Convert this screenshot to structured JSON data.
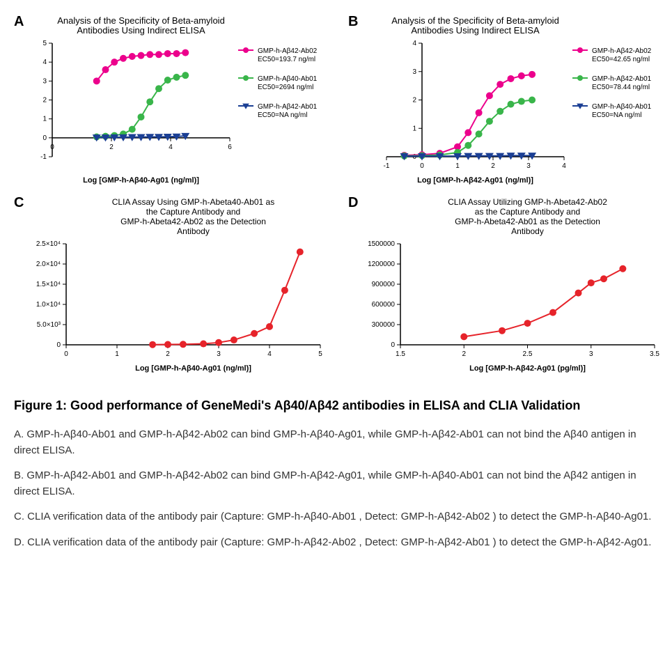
{
  "colors": {
    "pink": "#ec008c",
    "green": "#39b54a",
    "blue": "#1b3f94",
    "red": "#e6232a",
    "axis": "#000000",
    "bg": "#ffffff"
  },
  "panelA": {
    "label": "A",
    "title": "Analysis of the Specificity of Beta-amyloid\nAntibodies Using Indirect ELISA",
    "xlabel": "Log [GMP-h-Aβ40-Ag01 (ng/ml)]",
    "xlim": [
      0,
      6
    ],
    "xticks": [
      0,
      2,
      4,
      6
    ],
    "ylim": [
      -1,
      5
    ],
    "yticks": [
      -1,
      0,
      1,
      2,
      3,
      4,
      5
    ],
    "title_fontsize": 13,
    "axis_fontsize": 11,
    "tick_fontsize": 10,
    "legend": [
      {
        "marker": "circle",
        "color": "#ec008c",
        "lines": [
          "GMP-h-Aβ42-Ab02",
          "EC50=193.7 ng/ml"
        ]
      },
      {
        "marker": "circle",
        "color": "#39b54a",
        "lines": [
          "GMP-h-Aβ40-Ab01",
          "EC50=2694 ng/ml"
        ]
      },
      {
        "marker": "triangle-down",
        "color": "#1b3f94",
        "lines": [
          "GMP-h-Aβ42-Ab01",
          "EC50=NA ng/ml"
        ]
      }
    ],
    "series": [
      {
        "color": "#ec008c",
        "marker": "circle",
        "line_width": 2,
        "marker_size": 5,
        "x": [
          1.5,
          1.8,
          2.1,
          2.4,
          2.7,
          3.0,
          3.3,
          3.6,
          3.9,
          4.2,
          4.5
        ],
        "y": [
          3.0,
          3.6,
          4.0,
          4.2,
          4.3,
          4.35,
          4.4,
          4.4,
          4.45,
          4.45,
          4.5
        ]
      },
      {
        "color": "#39b54a",
        "marker": "circle",
        "line_width": 2,
        "marker_size": 5,
        "x": [
          1.5,
          1.8,
          2.1,
          2.4,
          2.7,
          3.0,
          3.3,
          3.6,
          3.9,
          4.2,
          4.5
        ],
        "y": [
          0.05,
          0.08,
          0.12,
          0.2,
          0.45,
          1.1,
          1.9,
          2.6,
          3.05,
          3.2,
          3.3
        ]
      },
      {
        "color": "#1b3f94",
        "marker": "triangle-down",
        "line_width": 2,
        "marker_size": 5,
        "x": [
          1.5,
          1.8,
          2.1,
          2.4,
          2.7,
          3.0,
          3.3,
          3.6,
          3.9,
          4.2,
          4.5
        ],
        "y": [
          0.02,
          0.02,
          0.03,
          0.03,
          0.04,
          0.04,
          0.05,
          0.05,
          0.06,
          0.07,
          0.1
        ]
      }
    ]
  },
  "panelB": {
    "label": "B",
    "title": "Analysis of the Specificity of Beta-amyloid\nAntibodies Using Indirect ELISA",
    "xlabel": "Log [GMP-h-Aβ42-Ag01 (ng/ml)]",
    "xlim": [
      -1,
      4
    ],
    "xticks": [
      -1,
      0,
      1,
      2,
      3,
      4
    ],
    "ylim": [
      0,
      4
    ],
    "yticks": [
      0,
      1,
      2,
      3,
      4
    ],
    "title_fontsize": 13,
    "axis_fontsize": 11,
    "tick_fontsize": 10,
    "legend": [
      {
        "marker": "circle",
        "color": "#ec008c",
        "lines": [
          "GMP-h-Aβ42-Ab02",
          "EC50=42.65 ng/ml"
        ]
      },
      {
        "marker": "circle",
        "color": "#39b54a",
        "lines": [
          "GMP-h-Aβ42-Ab01",
          "EC50=78.44 ng/ml"
        ]
      },
      {
        "marker": "triangle-down",
        "color": "#1b3f94",
        "lines": [
          "GMP-h-Aβ40-Ab01",
          "EC50=NA ng/ml"
        ]
      }
    ],
    "series": [
      {
        "color": "#ec008c",
        "marker": "circle",
        "line_width": 2,
        "marker_size": 5,
        "x": [
          -0.5,
          0.0,
          0.5,
          1.0,
          1.3,
          1.6,
          1.9,
          2.2,
          2.5,
          2.8,
          3.1
        ],
        "y": [
          0.05,
          0.07,
          0.12,
          0.35,
          0.85,
          1.55,
          2.15,
          2.55,
          2.75,
          2.85,
          2.9
        ]
      },
      {
        "color": "#39b54a",
        "marker": "circle",
        "line_width": 2,
        "marker_size": 5,
        "x": [
          -0.5,
          0.0,
          0.5,
          1.0,
          1.3,
          1.6,
          1.9,
          2.2,
          2.5,
          2.8,
          3.1
        ],
        "y": [
          0.03,
          0.04,
          0.06,
          0.15,
          0.4,
          0.8,
          1.25,
          1.6,
          1.85,
          1.95,
          2.0
        ]
      },
      {
        "color": "#1b3f94",
        "marker": "triangle-down",
        "line_width": 2,
        "marker_size": 5,
        "x": [
          -0.5,
          0.0,
          0.5,
          1.0,
          1.3,
          1.6,
          1.9,
          2.2,
          2.5,
          2.8,
          3.1
        ],
        "y": [
          0.02,
          0.02,
          0.02,
          0.02,
          0.03,
          0.03,
          0.03,
          0.03,
          0.04,
          0.04,
          0.04
        ]
      }
    ]
  },
  "panelC": {
    "label": "C",
    "title": "CLIA Assay Using GMP-h-Abeta40-Ab01 as\nthe Capture Antibody and\nGMP-h-Abeta42-Ab02 as the Detection\nAntibody",
    "xlabel": "Log [GMP-h-Aβ40-Ag01 (ng/ml)]",
    "xlim": [
      0,
      5
    ],
    "xticks": [
      0,
      1,
      2,
      3,
      4,
      5
    ],
    "ylim": [
      0,
      25000
    ],
    "yticks": [
      0,
      5000,
      10000,
      15000,
      20000,
      25000
    ],
    "yticklabels": [
      "0",
      "5.0×10³",
      "1.0×10⁴",
      "1.5×10⁴",
      "2.0×10⁴",
      "2.5×10⁴"
    ],
    "title_fontsize": 12,
    "axis_fontsize": 11,
    "tick_fontsize": 10,
    "series": [
      {
        "color": "#e6232a",
        "marker": "circle",
        "line_width": 2,
        "marker_size": 5,
        "x": [
          1.7,
          2.0,
          2.3,
          2.7,
          3.0,
          3.3,
          3.7,
          4.0,
          4.3,
          4.6
        ],
        "y": [
          50,
          80,
          120,
          250,
          550,
          1200,
          2800,
          4500,
          13500,
          23000
        ]
      }
    ]
  },
  "panelD": {
    "label": "D",
    "title": "CLIA Assay Utilizing GMP-h-Abeta42-Ab02\nas the Capture Antibody and\nGMP-h-Abeta42-Ab01 as the Detection\nAntibody",
    "xlabel": "Log [GMP-h-Aβ42-Ag01 (pg/ml)]",
    "xlim": [
      1.5,
      3.5
    ],
    "xticks": [
      1.5,
      2.0,
      2.5,
      3.0,
      3.5
    ],
    "ylim": [
      0,
      1500000
    ],
    "yticks": [
      0,
      300000,
      600000,
      900000,
      1200000,
      1500000
    ],
    "yticklabels": [
      "0",
      "300000",
      "600000",
      "900000",
      "1200000",
      "1500000"
    ],
    "title_fontsize": 12,
    "axis_fontsize": 11,
    "tick_fontsize": 10,
    "series": [
      {
        "color": "#e6232a",
        "marker": "circle",
        "line_width": 2,
        "marker_size": 5,
        "x": [
          2.0,
          2.3,
          2.5,
          2.7,
          2.9,
          3.0,
          3.1,
          3.25
        ],
        "y": [
          120000,
          210000,
          320000,
          480000,
          770000,
          920000,
          980000,
          1130000
        ]
      }
    ]
  },
  "caption": {
    "title": "Figure 1: Good performance of GeneMedi's Aβ40/Aβ42 antibodies in ELISA and CLIA Validation",
    "A": "A. GMP-h-Aβ40-Ab01 and GMP-h-Aβ42-Ab02 can bind GMP-h-Aβ40-Ag01, while GMP-h-Aβ42-Ab01 can not bind the Aβ40 antigen in direct ELISA.",
    "B": "B. GMP-h-Aβ42-Ab01 and GMP-h-Aβ42-Ab02 can bind GMP-h-Aβ42-Ag01, while GMP-h-Aβ40-Ab01 can not bind the Aβ42 antigen in direct ELISA.",
    "C": "C. CLIA verification data of the antibody pair (Capture: GMP-h-Aβ40-Ab01 , Detect: GMP-h-Aβ42-Ab02 ) to detect the GMP-h-Aβ40-Ag01.",
    "D": "D. CLIA verification data of the antibody pair (Capture: GMP-h-Aβ42-Ab02 , Detect: GMP-h-Aβ42-Ab01 ) to detect the GMP-h-Aβ42-Ag01."
  }
}
